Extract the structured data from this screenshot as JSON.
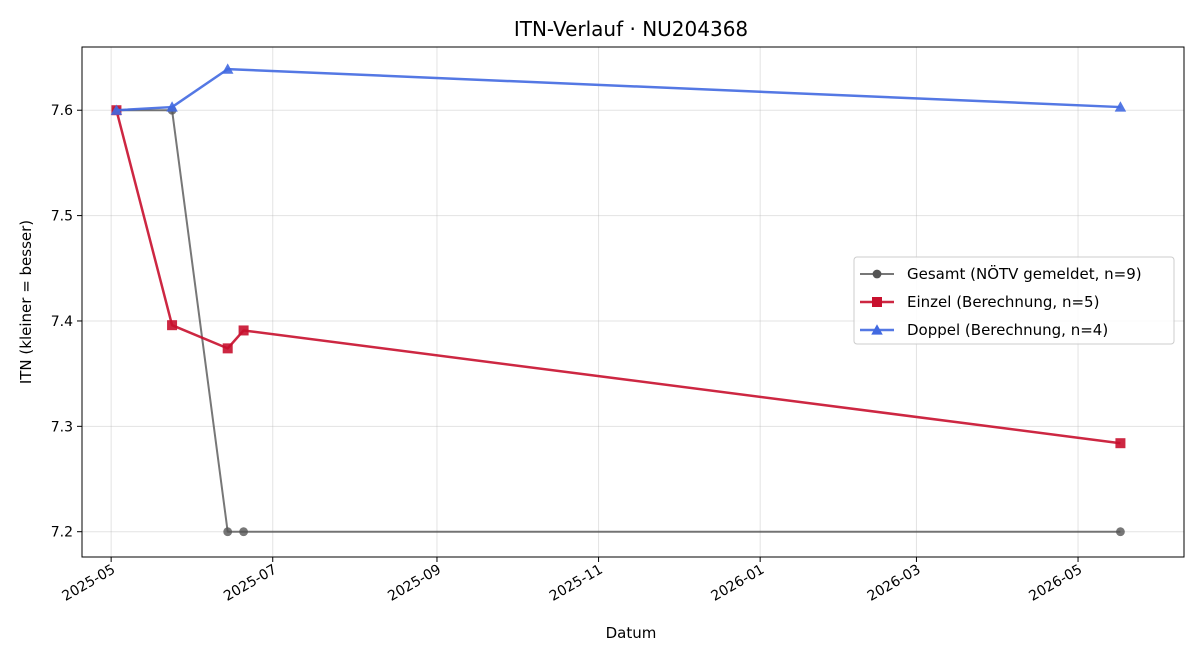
{
  "chart_data": {
    "type": "line",
    "title": "ITN-Verlauf · NU204368",
    "xlabel": "Datum",
    "ylabel": "ITN  (kleiner = besser)",
    "x_axis_type": "date",
    "xlim": [
      "2025-04-20",
      "2026-06-10"
    ],
    "ylim": [
      7.176,
      7.66
    ],
    "x_ticks": [
      "2025-05",
      "2025-07",
      "2025-09",
      "2025-11",
      "2026-01",
      "2026-03",
      "2026-05"
    ],
    "y_ticks": [
      "7.2",
      "7.3",
      "7.4",
      "7.5",
      "7.6"
    ],
    "grid": true,
    "legend_position": "center-right",
    "series": [
      {
        "name": "Gesamt (NÖTV gemeldet, n=9)",
        "color": "#555555",
        "marker": "circle",
        "points": [
          {
            "x": "2025-05-03",
            "y": 7.6
          },
          {
            "x": "2025-05-24",
            "y": 7.6
          },
          {
            "x": "2025-06-14",
            "y": 7.2
          },
          {
            "x": "2025-06-20",
            "y": 7.2
          },
          {
            "x": "2026-05-17",
            "y": 7.2
          }
        ]
      },
      {
        "name": "Einzel (Berechnung, n=5)",
        "color": "#c8102e",
        "marker": "square",
        "points": [
          {
            "x": "2025-05-03",
            "y": 7.6
          },
          {
            "x": "2025-05-24",
            "y": 7.396
          },
          {
            "x": "2025-06-14",
            "y": 7.374
          },
          {
            "x": "2025-06-20",
            "y": 7.391
          },
          {
            "x": "2026-05-17",
            "y": 7.284
          }
        ]
      },
      {
        "name": "Doppel (Berechnung, n=4)",
        "color": "#4169e1",
        "marker": "triangle",
        "points": [
          {
            "x": "2025-05-03",
            "y": 7.6
          },
          {
            "x": "2025-05-24",
            "y": 7.603
          },
          {
            "x": "2025-06-14",
            "y": 7.639
          },
          {
            "x": "2026-05-17",
            "y": 7.603
          }
        ]
      }
    ]
  }
}
